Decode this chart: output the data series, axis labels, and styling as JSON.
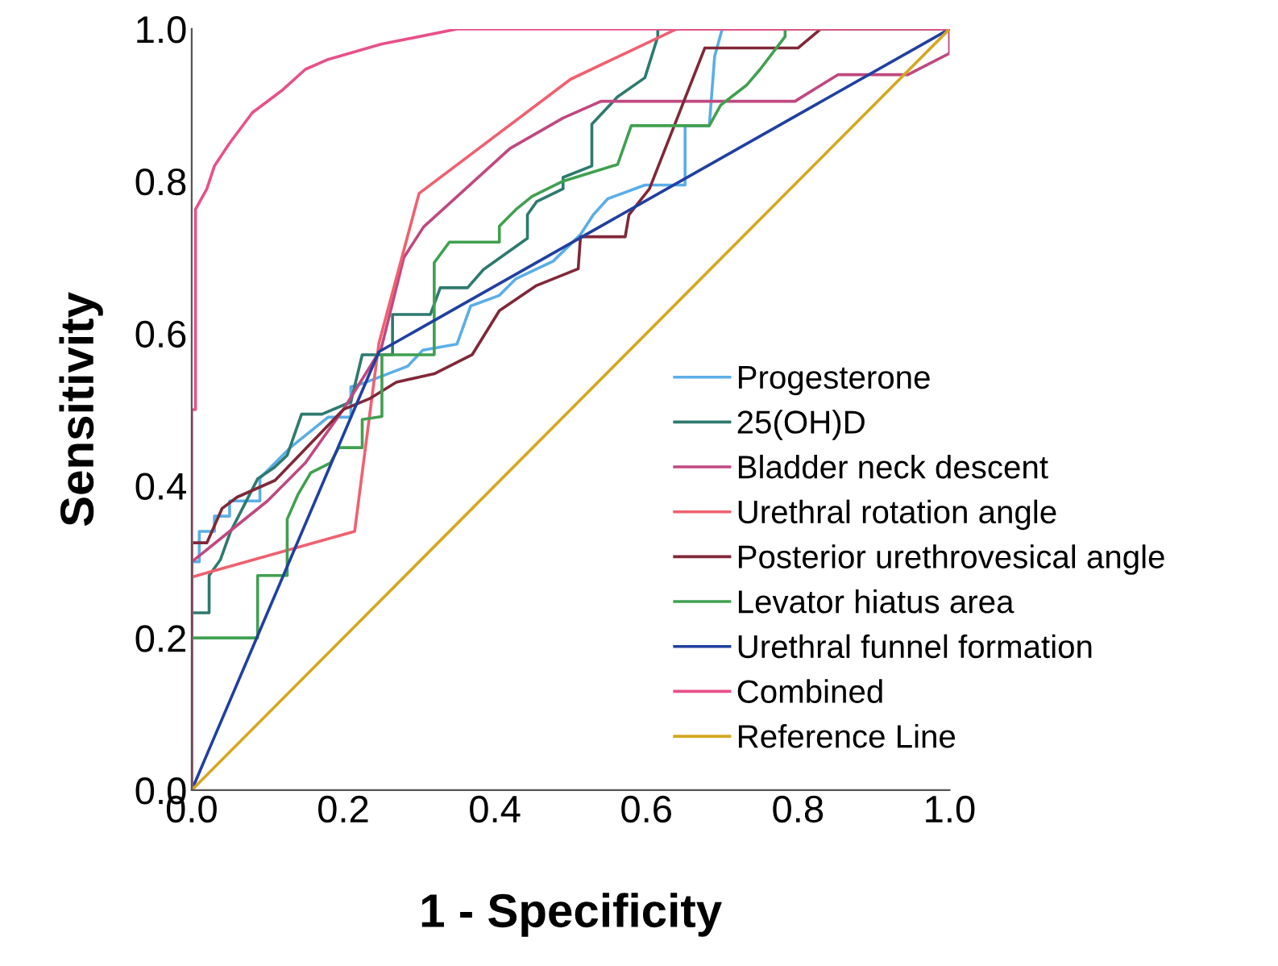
{
  "chart_data": {
    "type": "line",
    "xlabel": "1 - Specificity",
    "ylabel": "Sensitivity",
    "xlim": [
      0,
      1
    ],
    "ylim": [
      0,
      1
    ],
    "xticks": [
      {
        "value": 0,
        "label": "0.0"
      },
      {
        "value": 0.2,
        "label": "0.2"
      },
      {
        "value": 0.4,
        "label": "0.4"
      },
      {
        "value": 0.6,
        "label": "0.6"
      },
      {
        "value": 0.8,
        "label": "0.8"
      },
      {
        "value": 1,
        "label": "1.0"
      }
    ],
    "yticks": [
      {
        "value": 0,
        "label": "0.0"
      },
      {
        "value": 0.2,
        "label": "0.2"
      },
      {
        "value": 0.4,
        "label": "0.4"
      },
      {
        "value": 0.6,
        "label": "0.6"
      },
      {
        "value": 0.8,
        "label": "0.8"
      },
      {
        "value": 1,
        "label": "1.0"
      }
    ],
    "grid": false,
    "legend": "bottom right",
    "marker": "none",
    "line_style": "solid",
    "series": [
      {
        "name": "Progesterone",
        "color": "#5aaee8",
        "x": [
          0,
          0,
          0.01,
          0.01,
          0.03,
          0.03,
          0.05,
          0.05,
          0.09,
          0.09,
          0.13,
          0.18,
          0.21,
          0.21,
          0.225,
          0.285,
          0.305,
          0.35,
          0.368,
          0.406,
          0.428,
          0.477,
          0.513,
          0.53,
          0.549,
          0.598,
          0.651,
          0.651,
          0.683,
          0.69,
          0.7,
          1
        ],
        "values": [
          0,
          0.3,
          0.3,
          0.34,
          0.34,
          0.36,
          0.36,
          0.38,
          0.38,
          0.41,
          0.45,
          0.49,
          0.49,
          0.53,
          0.534,
          0.557,
          0.578,
          0.586,
          0.636,
          0.65,
          0.672,
          0.695,
          0.73,
          0.756,
          0.777,
          0.795,
          0.795,
          0.873,
          0.873,
          0.964,
          1.0,
          1.0
        ]
      },
      {
        "name": "25(OH)D",
        "color": "#2e7a6e",
        "x": [
          0,
          0,
          0.023,
          0.023,
          0.038,
          0.051,
          0.087,
          0.109,
          0.126,
          0.145,
          0.172,
          0.21,
          0.225,
          0.265,
          0.265,
          0.315,
          0.328,
          0.364,
          0.385,
          0.443,
          0.443,
          0.455,
          0.49,
          0.49,
          0.528,
          0.528,
          0.562,
          0.598,
          0.615,
          0.615,
          1
        ],
        "values": [
          0,
          0.233,
          0.233,
          0.282,
          0.303,
          0.339,
          0.409,
          0.424,
          0.44,
          0.494,
          0.494,
          0.51,
          0.572,
          0.572,
          0.625,
          0.625,
          0.66,
          0.66,
          0.684,
          0.725,
          0.756,
          0.773,
          0.79,
          0.805,
          0.82,
          0.875,
          0.911,
          0.936,
          0.99,
          1.0,
          1.0
        ]
      },
      {
        "name": "Bladder neck descent",
        "color": "#c04880",
        "x": [
          0,
          0,
          0.05,
          0.1,
          0.15,
          0.2,
          0.25,
          0.28,
          0.306,
          0.42,
          0.49,
          0.54,
          0.796,
          0.853,
          0.945,
          1.0,
          1.0
        ],
        "values": [
          0,
          0.3,
          0.34,
          0.38,
          0.43,
          0.5,
          0.58,
          0.7,
          0.74,
          0.843,
          0.883,
          0.905,
          0.905,
          0.94,
          0.94,
          0.968,
          1.0
        ]
      },
      {
        "name": "Urethral rotation angle",
        "color": "#f06070",
        "x": [
          0,
          0,
          0.215,
          0.247,
          0.3,
          0.5,
          0.64,
          1
        ],
        "values": [
          0,
          0.28,
          0.34,
          0.587,
          0.784,
          0.934,
          1.0,
          1.0
        ]
      },
      {
        "name": "Posterior urethrovesical angle",
        "color": "#802838",
        "x": [
          0,
          0,
          0.02,
          0.04,
          0.06,
          0.11,
          0.2,
          0.236,
          0.27,
          0.32,
          0.37,
          0.406,
          0.455,
          0.51,
          0.513,
          0.572,
          0.577,
          0.604,
          0.677,
          0.8,
          0.83,
          1
        ],
        "values": [
          0,
          0.325,
          0.325,
          0.37,
          0.385,
          0.407,
          0.5,
          0.515,
          0.536,
          0.547,
          0.572,
          0.63,
          0.663,
          0.685,
          0.727,
          0.727,
          0.756,
          0.79,
          0.975,
          0.975,
          1.0,
          1.0
        ]
      },
      {
        "name": "Levator hiatus area",
        "color": "#40a050",
        "x": [
          0,
          0,
          0.087,
          0.087,
          0.126,
          0.126,
          0.14,
          0.157,
          0.183,
          0.194,
          0.225,
          0.225,
          0.251,
          0.251,
          0.32,
          0.32,
          0.34,
          0.406,
          0.406,
          0.428,
          0.449,
          0.49,
          0.562,
          0.58,
          0.683,
          0.698,
          0.732,
          0.75,
          0.783,
          0.783,
          1
        ],
        "values": [
          0,
          0.2,
          0.2,
          0.282,
          0.282,
          0.356,
          0.388,
          0.417,
          0.43,
          0.45,
          0.45,
          0.487,
          0.491,
          0.572,
          0.572,
          0.693,
          0.72,
          0.72,
          0.741,
          0.763,
          0.78,
          0.8,
          0.822,
          0.873,
          0.873,
          0.9,
          0.926,
          0.947,
          0.99,
          1.0,
          1.0
        ]
      },
      {
        "name": "Urethral funnel formation",
        "color": "#2040a0",
        "x": [
          0,
          0.247,
          1
        ],
        "values": [
          0,
          0.576,
          1.0
        ]
      },
      {
        "name": "Combined",
        "color": "#e8508a",
        "x": [
          0,
          0,
          0.005,
          0.005,
          0.02,
          0.03,
          0.05,
          0.08,
          0.12,
          0.15,
          0.18,
          0.25,
          0.35,
          1
        ],
        "values": [
          0,
          0.5,
          0.5,
          0.763,
          0.79,
          0.82,
          0.85,
          0.89,
          0.92,
          0.947,
          0.96,
          0.98,
          1.0,
          1.0
        ]
      },
      {
        "name": "Reference Line",
        "color": "#d4a820",
        "x": [
          0,
          1
        ],
        "values": [
          0,
          1
        ]
      }
    ]
  }
}
